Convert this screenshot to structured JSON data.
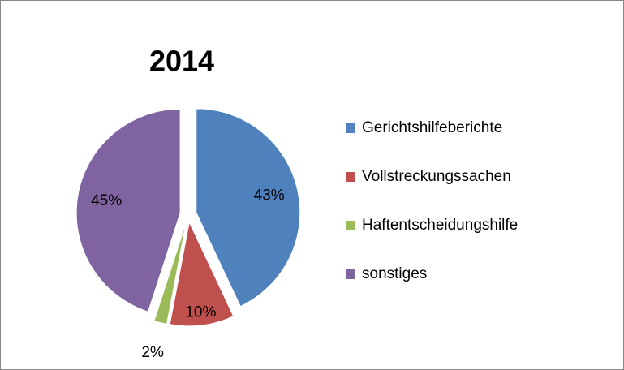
{
  "chart_data": {
    "type": "pie",
    "title": "2014",
    "categories": [
      "Gerichtshilfeberichte",
      "Vollstreckungssachen",
      "Haftentscheidungshilfe",
      "sonstiges"
    ],
    "values": [
      43,
      10,
      2,
      45
    ],
    "value_labels": [
      "43%",
      "10%",
      "2%",
      "45%"
    ],
    "colors": [
      "#4f81bd",
      "#c0504d",
      "#9bbb59",
      "#8064a2"
    ],
    "legend": "right"
  }
}
